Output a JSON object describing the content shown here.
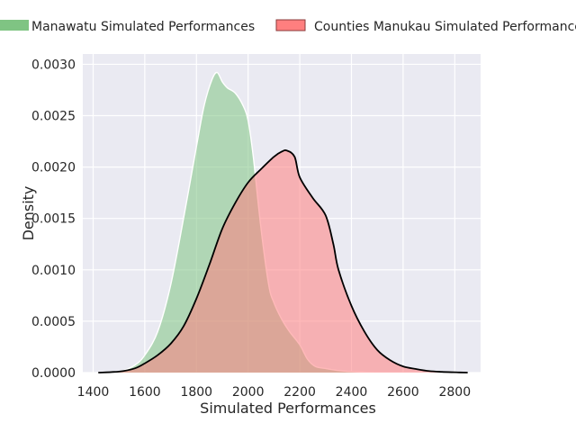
{
  "chart_data": {
    "type": "area",
    "title": "",
    "xlabel": "Simulated Performances",
    "ylabel": "Density",
    "xlim": [
      1360,
      2900
    ],
    "ylim": [
      0,
      0.0031
    ],
    "x_ticks": [
      1400,
      1600,
      1800,
      2000,
      2200,
      2400,
      2600,
      2800
    ],
    "x_tick_labels": [
      "1400",
      "1600",
      "1800",
      "2000",
      "2200",
      "2400",
      "2600",
      "2800"
    ],
    "y_ticks": [
      0,
      0.0005,
      0.001,
      0.0015,
      0.002,
      0.0025,
      0.003
    ],
    "y_tick_labels": [
      "0.0000",
      "0.0005",
      "0.0010",
      "0.0015",
      "0.0020",
      "0.0025",
      "0.0030"
    ],
    "grid": true,
    "legend_position": "top",
    "series": [
      {
        "name": "Manawatu Simulated Performances",
        "color": "#7fc483",
        "fill_opacity": 0.55,
        "outline_color": "#ffffff",
        "x": [
          1420,
          1500,
          1560,
          1600,
          1650,
          1700,
          1750,
          1800,
          1830,
          1860,
          1880,
          1900,
          1920,
          1950,
          1980,
          2000,
          2020,
          2050,
          2080,
          2100,
          2130,
          2160,
          2200,
          2230,
          2260,
          2300,
          2350,
          2400,
          2450,
          2500,
          2550,
          2650,
          2800
        ],
        "y": [
          0,
          1e-05,
          7e-05,
          0.00017,
          0.0004,
          0.00085,
          0.0015,
          0.0022,
          0.0026,
          0.00285,
          0.00292,
          0.00283,
          0.00277,
          0.00272,
          0.0026,
          0.00245,
          0.0021,
          0.0014,
          0.00085,
          0.00068,
          0.00052,
          0.0004,
          0.00027,
          0.00013,
          6e-05,
          4e-05,
          2e-05,
          1e-05,
          5e-06,
          0,
          0,
          0,
          0
        ]
      },
      {
        "name": "Counties Manukau Simulated Performances",
        "color": "#ff7f7f",
        "fill_opacity": 0.55,
        "outline_color": "#000000",
        "x": [
          1420,
          1500,
          1560,
          1600,
          1650,
          1700,
          1750,
          1800,
          1850,
          1900,
          1950,
          2000,
          2050,
          2100,
          2130,
          2150,
          2180,
          2200,
          2250,
          2300,
          2330,
          2350,
          2400,
          2450,
          2500,
          2550,
          2600,
          2650,
          2700,
          2750,
          2800,
          2850
        ],
        "y": [
          0,
          1e-05,
          4e-05,
          9e-05,
          0.00017,
          0.00028,
          0.00045,
          0.00072,
          0.00105,
          0.0014,
          0.00165,
          0.00185,
          0.00198,
          0.0021,
          0.00215,
          0.00216,
          0.0021,
          0.0019,
          0.0017,
          0.00153,
          0.00125,
          0.001,
          0.00065,
          0.0004,
          0.00022,
          0.00012,
          6e-05,
          3.5e-05,
          1.5e-05,
          7e-06,
          3e-06,
          0
        ]
      }
    ]
  }
}
